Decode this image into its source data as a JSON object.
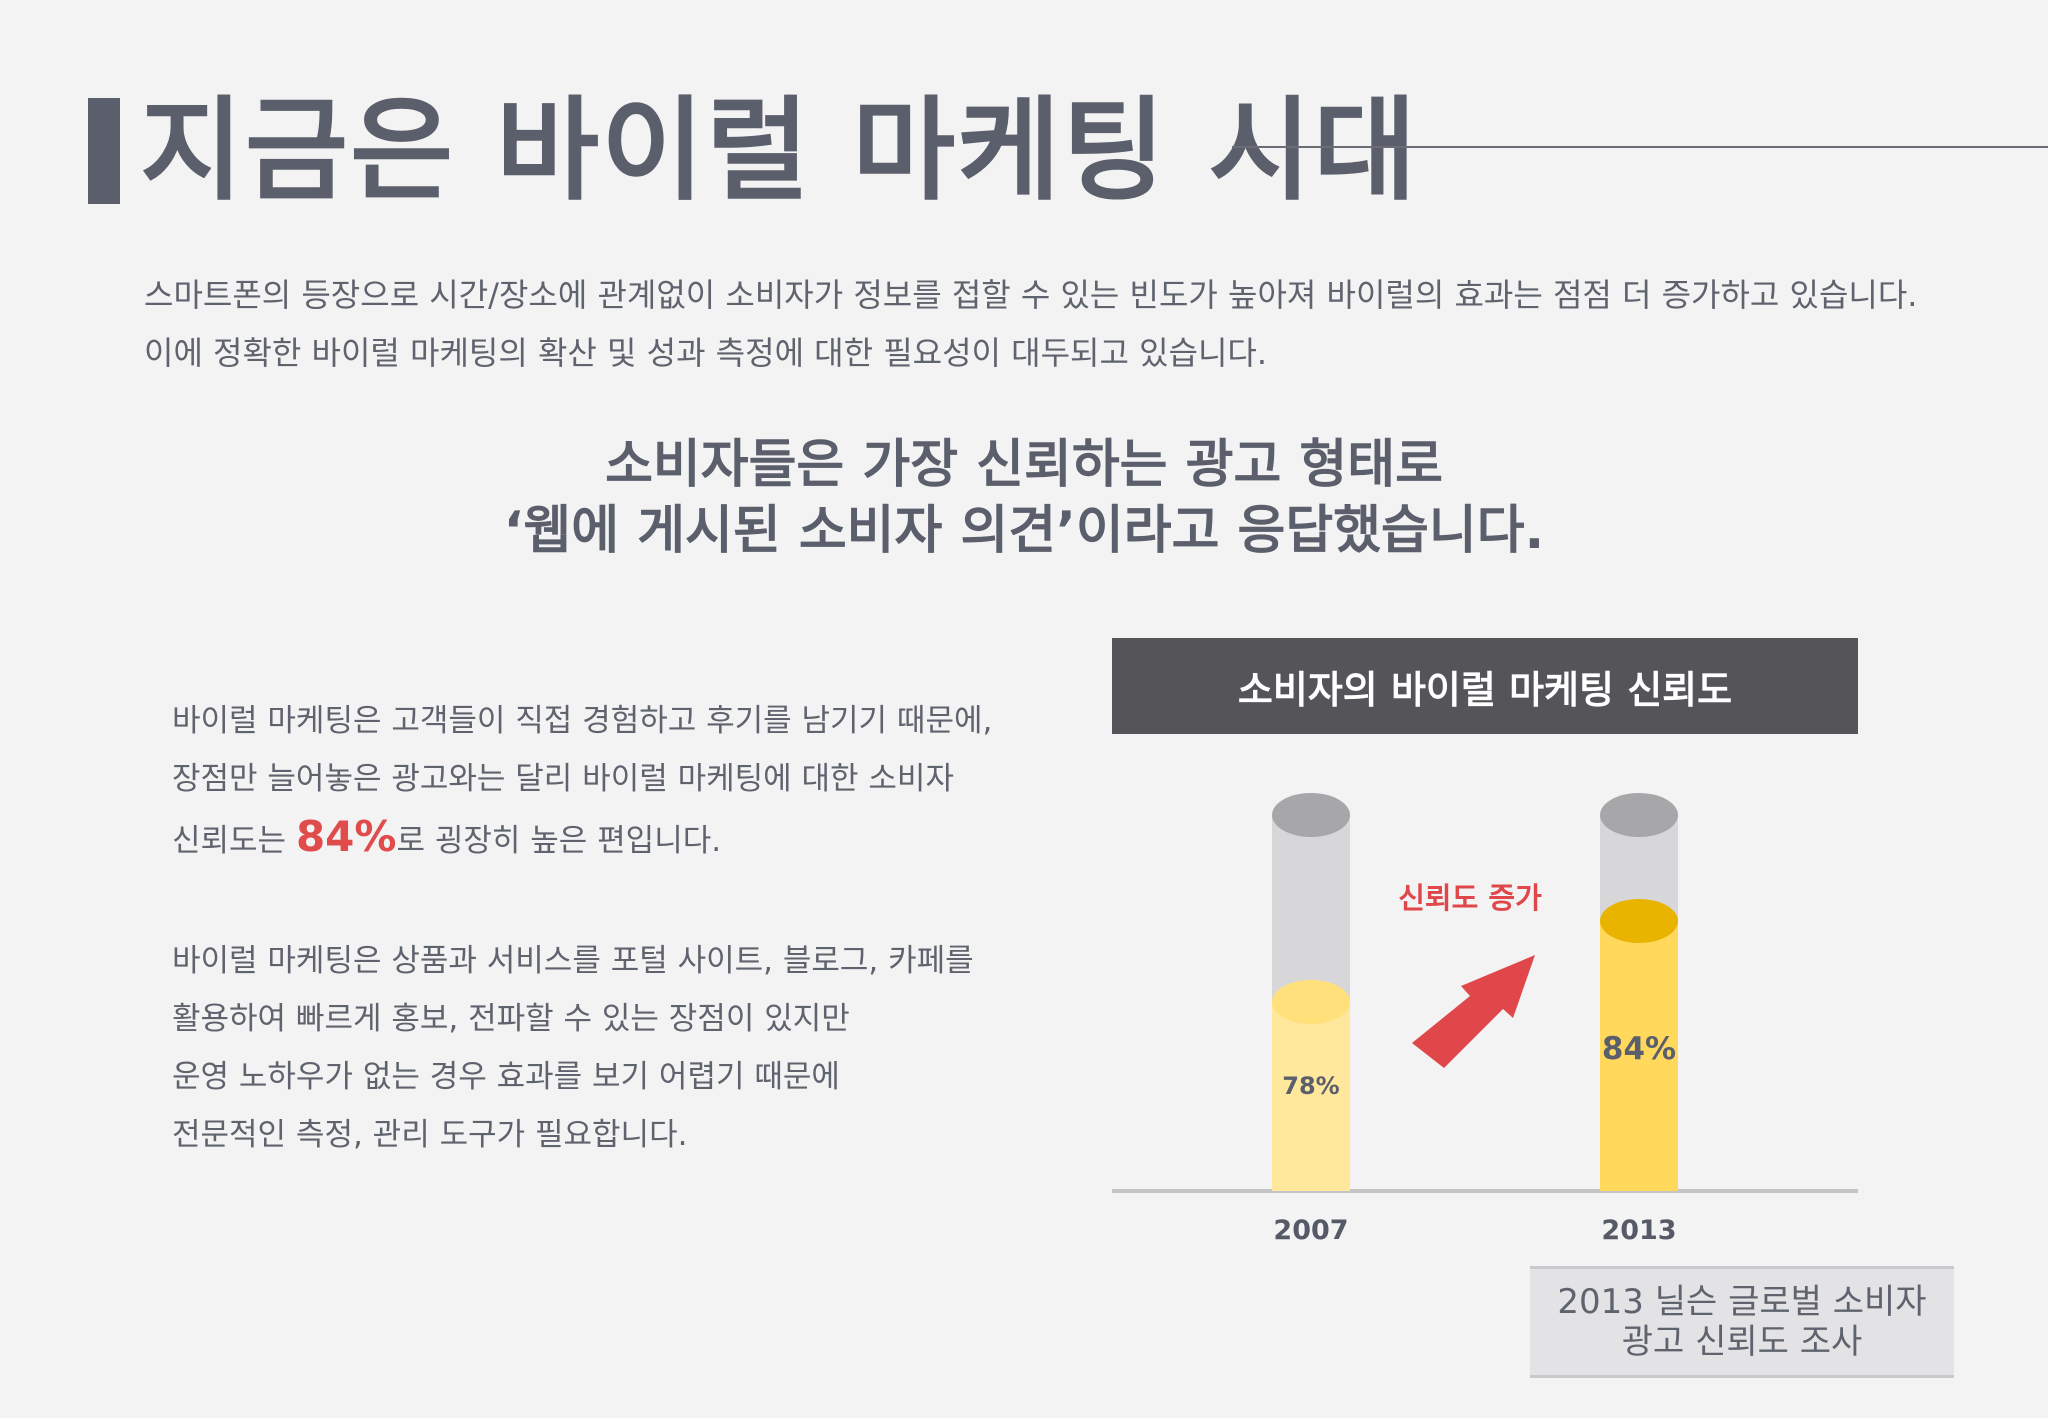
{
  "page": {
    "title": "지금은 바이럴 마케팅 시대",
    "intro": [
      "스마트폰의 등장으로 시간/장소에 관계없이 소비자가 정보를 접할 수 있는 빈도가 높아져 바이럴의 효과는 점점 더 증가하고 있습니다.",
      "이에 정확한 바이럴 마케팅의 확산 및 성과 측정에 대한 필요성이 대두되고 있습니다."
    ],
    "headline": [
      "소비자들은 가장 신뢰하는 광고 형태로",
      "‘웹에 게시된 소비자 의견’이라고 응답했습니다."
    ],
    "body": {
      "para1_line1": "바이럴 마케팅은 고객들이 직접 경험하고 후기를 남기기 때문에,",
      "para1_line2": "장점만 늘어놓은 광고와는 달리 바이럴 마케팅에 대한 소비자",
      "para1_line3_prefix": "신뢰도는 ",
      "para1_highlight": "84%",
      "para1_line3_suffix": "로 굉장히 높은 편입니다.",
      "para2": [
        "바이럴 마케팅은 상품과 서비스를 포털 사이트, 블로그, 카페를",
        "활용하여 빠르게 홍보, 전파할 수 있는 장점이 있지만",
        "운영 노하우가 없는 경우 효과를 보기 어렵기 때문에",
        "전문적인 측정, 관리 도구가 필요합니다."
      ]
    },
    "source": [
      "2013 닐슨 글로벌 소비자",
      "광고 신뢰도 조사"
    ]
  },
  "chart_data": {
    "type": "bar",
    "title": "소비자의 바이럴 마케팅 신뢰도",
    "categories": [
      "2007",
      "2013"
    ],
    "values": [
      78,
      84
    ],
    "value_labels": [
      "78%",
      "84%"
    ],
    "ylim": [
      0,
      100
    ],
    "annotation": "신뢰도 증가",
    "colors": {
      "bar_2007": "#ffe89c",
      "bar_2013": "#ffd85c",
      "empty_cylinder": "#d7d6d9",
      "cap": "#a7a7aa",
      "arrow": "#e0474a",
      "annotation_text": "#e0474a"
    }
  }
}
